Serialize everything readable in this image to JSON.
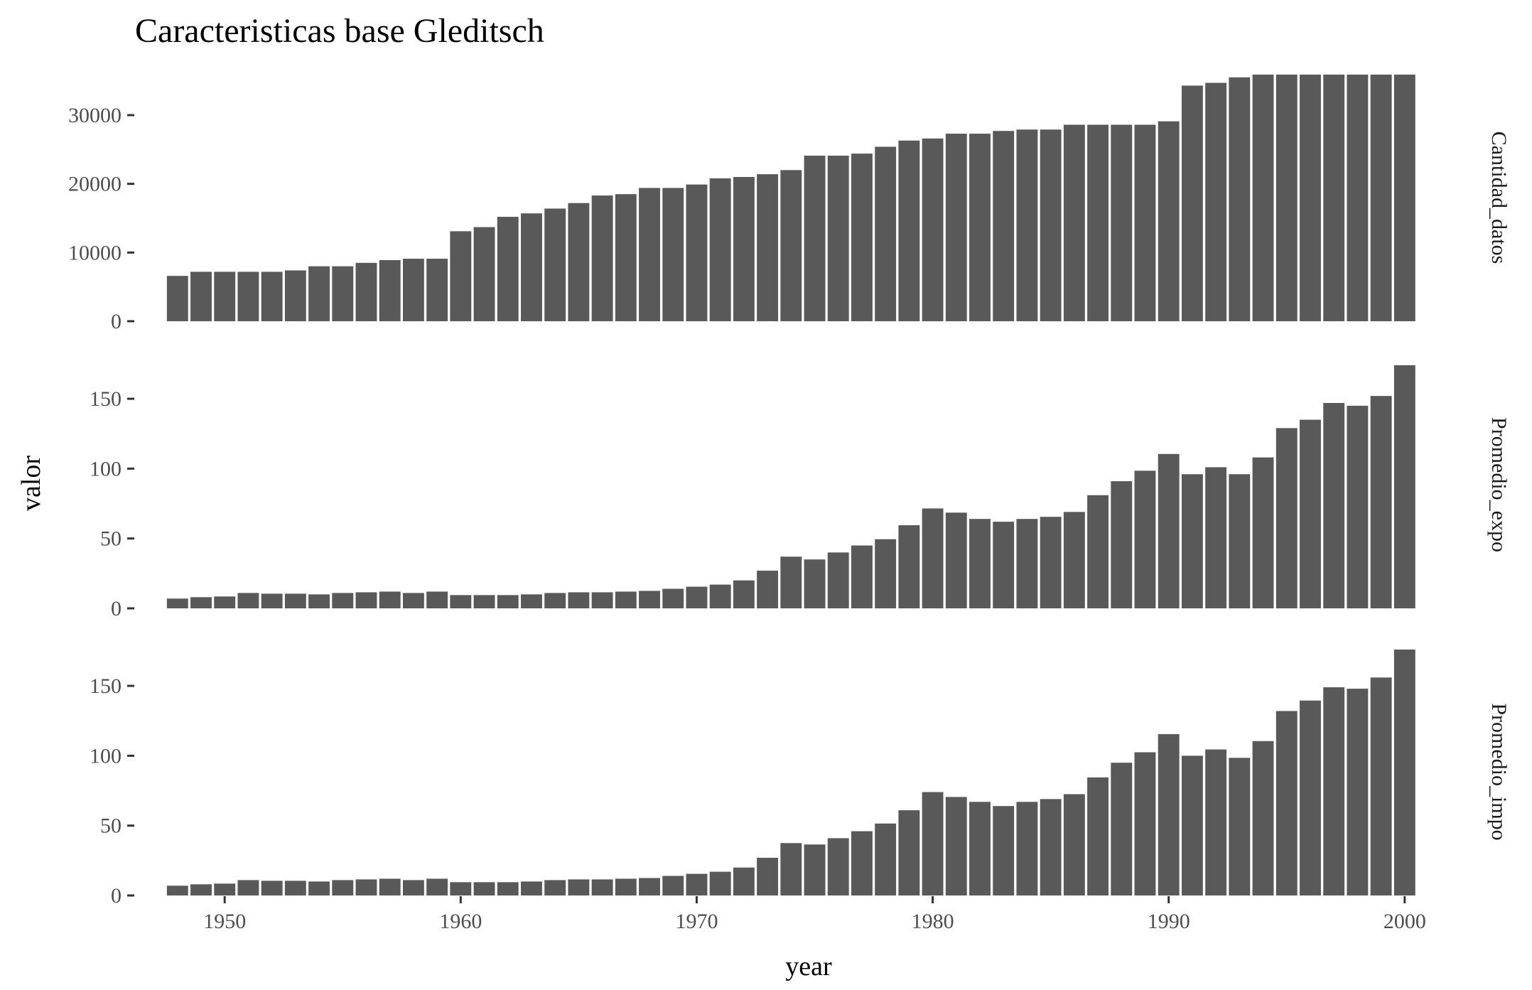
{
  "chart_data": {
    "type": "bar",
    "title": "Caracteristicas base Gleditsch",
    "xlabel": "year",
    "ylabel": "valor",
    "grid": false,
    "x": [
      1948,
      1949,
      1950,
      1951,
      1952,
      1953,
      1954,
      1955,
      1956,
      1957,
      1958,
      1959,
      1960,
      1961,
      1962,
      1963,
      1964,
      1965,
      1966,
      1967,
      1968,
      1969,
      1970,
      1971,
      1972,
      1973,
      1974,
      1975,
      1976,
      1977,
      1978,
      1979,
      1980,
      1981,
      1982,
      1983,
      1984,
      1985,
      1986,
      1987,
      1988,
      1989,
      1990,
      1991,
      1992,
      1993,
      1994,
      1995,
      1996,
      1997,
      1998,
      1999,
      2000
    ],
    "xlim": [
      1946.2,
      2001.3
    ],
    "x_ticks": [
      1950,
      1960,
      1970,
      1980,
      1990,
      2000
    ],
    "x_tick_labels": [
      "1950",
      "1960",
      "1970",
      "1980",
      "1990",
      "2000"
    ],
    "panels": [
      {
        "name": "Cantidad_datos",
        "ylim": [
          0,
          36000
        ],
        "y_ticks": [
          0,
          10000,
          20000,
          30000
        ],
        "y_tick_labels": [
          "0",
          "10000",
          "20000",
          "30000"
        ],
        "values": [
          6600,
          7200,
          7200,
          7200,
          7200,
          7400,
          8000,
          8000,
          8500,
          8900,
          9100,
          9100,
          13100,
          13700,
          15200,
          15700,
          16400,
          17200,
          18300,
          18500,
          19400,
          19400,
          19900,
          20800,
          21000,
          21400,
          22000,
          24100,
          24100,
          24400,
          25400,
          26300,
          26600,
          27300,
          27300,
          27700,
          27900,
          27900,
          28600,
          28600,
          28600,
          28600,
          29100,
          34300,
          34700,
          35500,
          35900,
          35900,
          35900,
          35900,
          35900,
          35900,
          35900
        ]
      },
      {
        "name": "Promedio_expo",
        "ylim": [
          0,
          177
        ],
        "y_ticks": [
          0,
          50,
          100,
          150
        ],
        "y_tick_labels": [
          "0",
          "50",
          "100",
          "150"
        ],
        "values": [
          7,
          8,
          8.5,
          11,
          10.5,
          10.5,
          10,
          11,
          11.5,
          12,
          11,
          12,
          9.5,
          9.5,
          9.5,
          10,
          11,
          11.5,
          11.5,
          12,
          12.5,
          14,
          15.5,
          17,
          20,
          27,
          37,
          35,
          40,
          45,
          49.5,
          59.5,
          71.5,
          68.5,
          64,
          62,
          64,
          65.5,
          69,
          81,
          91,
          98.5,
          110.5,
          96,
          101,
          96,
          108,
          129,
          135,
          147,
          145,
          152,
          174
        ]
      },
      {
        "name": "Promedio_impo",
        "ylim": [
          0,
          177
        ],
        "y_ticks": [
          0,
          50,
          100,
          150
        ],
        "y_tick_labels": [
          "0",
          "50",
          "100",
          "150"
        ],
        "values": [
          7,
          8,
          8.5,
          11,
          10.5,
          10.5,
          10,
          11,
          11.5,
          12,
          11,
          12,
          9.5,
          9.5,
          9.5,
          10,
          11,
          11.5,
          11.5,
          12,
          12.5,
          14,
          15.5,
          17,
          20,
          27,
          37.5,
          36.5,
          41,
          46,
          51.5,
          61,
          74,
          70.5,
          67,
          64,
          67,
          69,
          72.5,
          84.5,
          95,
          102.5,
          115.5,
          100,
          104.5,
          98.5,
          110.5,
          132,
          139.5,
          149,
          148,
          156,
          176
        ]
      }
    ]
  }
}
